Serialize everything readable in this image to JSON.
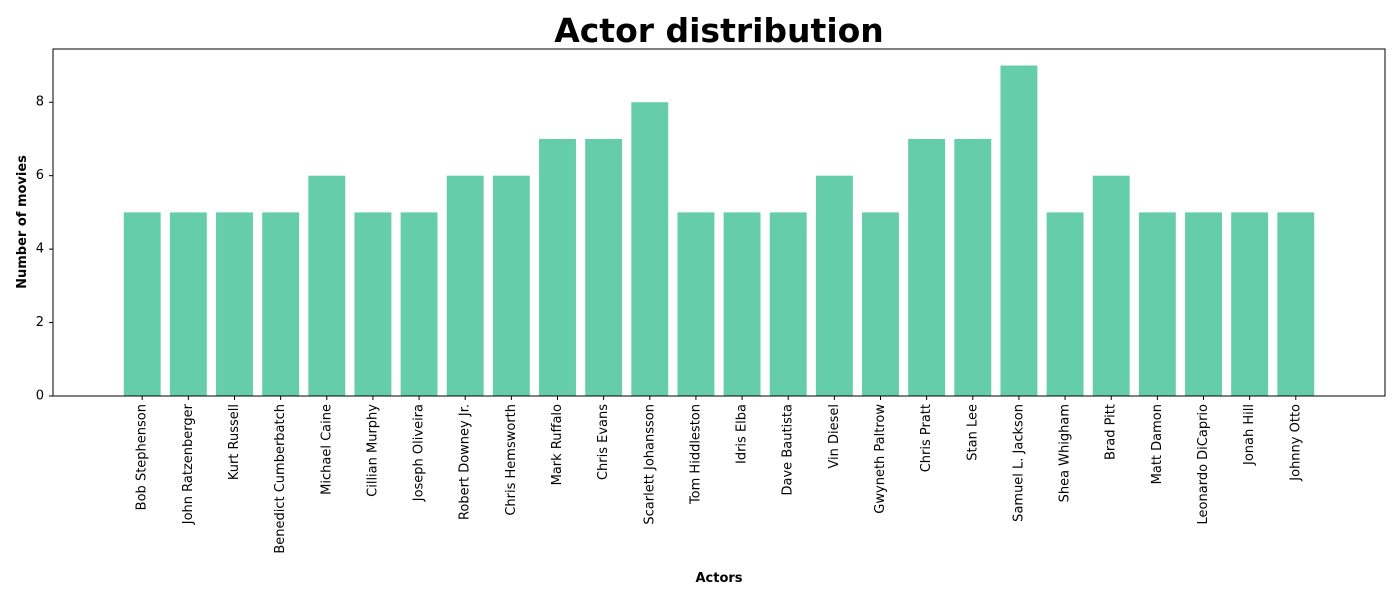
{
  "chart_data": {
    "type": "bar",
    "title": "Actor distribution",
    "xlabel": "Actors",
    "ylabel": "Number of movies",
    "categories": [
      "Bob Stephenson",
      "John Ratzenberger",
      "Kurt Russell",
      "Benedict Cumberbatch",
      "Michael Caine",
      "Cillian Murphy",
      "Joseph Oliveira",
      "Robert Downey Jr.",
      "Chris Hemsworth",
      "Mark Ruffalo",
      "Chris Evans",
      "Scarlett Johansson",
      "Tom Hiddleston",
      "Idris Elba",
      "Dave Bautista",
      "Vin Diesel",
      "Gwyneth Paltrow",
      "Chris Pratt",
      "Stan Lee",
      "Samuel L. Jackson",
      "Shea Whigham",
      "Brad Pitt",
      "Matt Damon",
      "Leonardo DiCaprio",
      "Jonah Hill",
      "Johnny Otto"
    ],
    "values": [
      5,
      5,
      5,
      5,
      6,
      5,
      5,
      6,
      6,
      7,
      7,
      8,
      5,
      5,
      5,
      6,
      5,
      7,
      7,
      9,
      5,
      6,
      5,
      5,
      5,
      5
    ],
    "ylim": [
      0,
      9.45
    ],
    "yticks": [
      0,
      2,
      4,
      6,
      8
    ],
    "bar_color": "#66cdaa",
    "grid": false,
    "legend": "none"
  }
}
